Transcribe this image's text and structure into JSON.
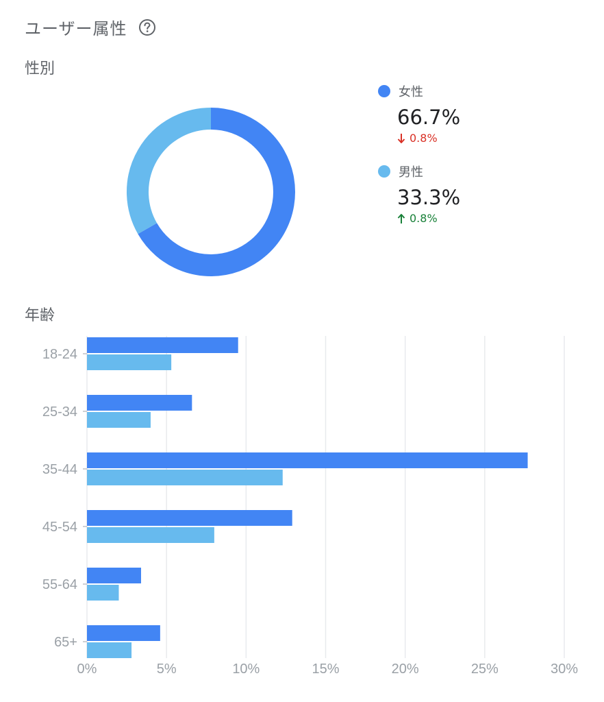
{
  "header": {
    "title": "ユーザー属性",
    "help_icon": "help-circle-icon"
  },
  "gender": {
    "label": "性別",
    "legend": [
      {
        "name": "女性",
        "value": "66.7%",
        "change": "0.8%",
        "direction": "down",
        "color": "#4285f4",
        "change_color": "#d93025"
      },
      {
        "name": "男性",
        "value": "33.3%",
        "change": "0.8%",
        "direction": "up",
        "color": "#67baee",
        "change_color": "#188038"
      }
    ]
  },
  "age": {
    "label": "年齢"
  },
  "chart_data": [
    {
      "type": "pie",
      "variant": "donut",
      "categories": [
        "女性",
        "男性"
      ],
      "values": [
        66.7,
        33.3
      ],
      "colors": [
        "#4285f4",
        "#67baee"
      ]
    },
    {
      "type": "bar",
      "orientation": "horizontal",
      "categories": [
        "18-24",
        "25-34",
        "35-44",
        "45-54",
        "55-64",
        "65+"
      ],
      "series": [
        {
          "values": [
            9.5,
            6.6,
            27.7,
            12.9,
            3.4,
            4.6
          ],
          "color": "#4285f4"
        },
        {
          "values": [
            5.3,
            4.0,
            12.3,
            8.0,
            2.0,
            2.8
          ],
          "color": "#67baee"
        }
      ],
      "xlim": [
        0,
        30
      ],
      "xticks": [
        "0%",
        "5%",
        "10%",
        "15%",
        "20%",
        "25%",
        "30%"
      ],
      "grid": true
    }
  ]
}
